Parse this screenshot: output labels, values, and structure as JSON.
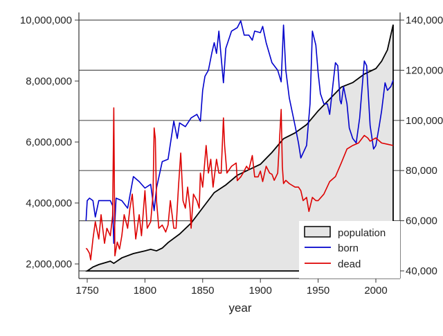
{
  "chart_data": {
    "type": "line",
    "xlabel": "year",
    "x_ticks": [
      "1750",
      "1800",
      "1850",
      "1900",
      "1950",
      "2000"
    ],
    "xlim": [
      1743,
      2021
    ],
    "y_left": {
      "ticks": [
        "2,000,000",
        "4,000,000",
        "6,000,000",
        "8,000,000",
        "10,000,000"
      ],
      "tick_values": [
        2000000,
        4000000,
        6000000,
        8000000,
        10000000
      ],
      "range": [
        1750000,
        10260000
      ]
    },
    "y_right": {
      "ticks": [
        "40,000",
        "60,000",
        "80,000",
        "100,000",
        "120,000",
        "140,000"
      ],
      "tick_values": [
        40000,
        60000,
        80000,
        100000,
        120000,
        140000
      ],
      "range": [
        37000,
        143000
      ]
    },
    "grid": "horizontal at right-axis ticks",
    "legend": {
      "position": "bottom-right",
      "entries": [
        "population",
        "born",
        "dead"
      ]
    },
    "colors": {
      "population_fill": "#e5e5e5",
      "population_line": "#000000",
      "born": "#0000cc",
      "dead": "#dd0000",
      "grid": "#555555"
    },
    "series": [
      {
        "name": "population",
        "axis": "left",
        "kind": "area",
        "x": [
          1750,
          1755,
          1760,
          1770,
          1773,
          1780,
          1790,
          1800,
          1805,
          1810,
          1815,
          1820,
          1830,
          1840,
          1850,
          1860,
          1870,
          1880,
          1890,
          1900,
          1910,
          1920,
          1930,
          1940,
          1950,
          1960,
          1970,
          1980,
          1990,
          2000,
          2005,
          2010,
          2015
        ],
        "y": [
          1770000,
          1900000,
          1980000,
          2090000,
          2020000,
          2200000,
          2340000,
          2430000,
          2480000,
          2430000,
          2520000,
          2700000,
          2980000,
          3340000,
          3840000,
          4340000,
          4590000,
          4910000,
          5090000,
          5270000,
          5660000,
          6110000,
          6300000,
          6570000,
          7020000,
          7410000,
          7800000,
          7950000,
          8230000,
          8410000,
          8650000,
          9020000,
          9850000
        ]
      },
      {
        "name": "born",
        "axis": "right",
        "kind": "line",
        "x": [
          1749,
          1750,
          1752,
          1755,
          1757,
          1760,
          1765,
          1770,
          1772,
          1773,
          1775,
          1780,
          1785,
          1790,
          1795,
          1800,
          1805,
          1808,
          1810,
          1815,
          1820,
          1825,
          1828,
          1830,
          1835,
          1840,
          1845,
          1848,
          1850,
          1852,
          1855,
          1858,
          1860,
          1862,
          1864,
          1868,
          1870,
          1875,
          1880,
          1883,
          1886,
          1890,
          1893,
          1895,
          1900,
          1902,
          1905,
          1910,
          1915,
          1918,
          1920,
          1922,
          1925,
          1930,
          1933,
          1935,
          1940,
          1943,
          1945,
          1948,
          1950,
          1952,
          1955,
          1958,
          1960,
          1963,
          1965,
          1967,
          1969,
          1970,
          1972,
          1975,
          1977,
          1980,
          1983,
          1986,
          1990,
          1992,
          1995,
          1998,
          2000,
          2003,
          2005,
          2008,
          2010,
          2013,
          2015
        ],
        "y": [
          60000,
          68000,
          69000,
          68000,
          61500,
          68000,
          68000,
          68000,
          66000,
          51000,
          69000,
          68000,
          65000,
          77600,
          75600,
          73000,
          74500,
          64000,
          73000,
          83600,
          84500,
          99700,
          92800,
          99000,
          97500,
          101000,
          102400,
          99700,
          112000,
          117600,
          120000,
          127000,
          131000,
          126700,
          135600,
          115000,
          128700,
          135600,
          137000,
          139700,
          134000,
          134000,
          132000,
          135600,
          135000,
          137500,
          131000,
          123000,
          120000,
          115400,
          138000,
          120000,
          109000,
          98000,
          91000,
          85000,
          90000,
          106600,
          135600,
          130000,
          119000,
          110700,
          106600,
          106600,
          102400,
          115000,
          123000,
          121800,
          108000,
          106600,
          113500,
          106600,
          97000,
          92800,
          91000,
          101000,
          123700,
          121800,
          98000,
          88600,
          90000,
          98000,
          103800,
          115000,
          112000,
          113500,
          116000
        ]
      },
      {
        "name": "dead",
        "axis": "right",
        "kind": "line",
        "x": [
          1749,
          1750,
          1752,
          1753,
          1755,
          1757,
          1760,
          1762,
          1765,
          1767,
          1770,
          1772,
          1773,
          1774,
          1776,
          1778,
          1780,
          1782,
          1785,
          1787,
          1789,
          1790,
          1792,
          1795,
          1797,
          1800,
          1802,
          1805,
          1807,
          1808,
          1809,
          1810,
          1812,
          1815,
          1818,
          1820,
          1822,
          1825,
          1827,
          1829,
          1831,
          1833,
          1835,
          1837,
          1839,
          1840,
          1842,
          1845,
          1847,
          1848,
          1850,
          1853,
          1855,
          1857,
          1859,
          1862,
          1864,
          1866,
          1868,
          1869,
          1871,
          1875,
          1879,
          1880,
          1883,
          1885,
          1888,
          1890,
          1893,
          1895,
          1898,
          1900,
          1902,
          1905,
          1908,
          1910,
          1912,
          1915,
          1918,
          1919,
          1920,
          1922,
          1925,
          1930,
          1933,
          1935,
          1937,
          1940,
          1942,
          1945,
          1948,
          1950,
          1955,
          1960,
          1965,
          1970,
          1975,
          1980,
          1985,
          1990,
          1993,
          1995,
          2000,
          2005,
          2010,
          2015
        ],
        "y": [
          49000,
          48600,
          47000,
          44400,
          52700,
          59600,
          52700,
          62400,
          51000,
          57000,
          54000,
          62000,
          105000,
          46000,
          51500,
          48700,
          54000,
          62400,
          57000,
          65000,
          70600,
          65000,
          52700,
          62400,
          54000,
          72000,
          57000,
          59600,
          70600,
          97000,
          92800,
          68000,
          57000,
          58300,
          55500,
          58300,
          68000,
          57000,
          57000,
          73400,
          87000,
          68000,
          65000,
          73400,
          65000,
          57000,
          70600,
          68000,
          65000,
          79000,
          73400,
          90000,
          79000,
          84500,
          73400,
          84500,
          79000,
          79000,
          101000,
          90000,
          79000,
          81700,
          83000,
          76000,
          77500,
          79000,
          81700,
          80300,
          86000,
          77500,
          77500,
          79800,
          75600,
          81700,
          79000,
          78500,
          76100,
          79000,
          104400,
          81700,
          74800,
          76100,
          74800,
          73400,
          73400,
          72000,
          68000,
          69300,
          63700,
          69300,
          68000,
          68000,
          70600,
          75600,
          77600,
          83000,
          88600,
          90000,
          91000,
          94000,
          93000,
          91700,
          93000,
          91000,
          90500,
          90000
        ]
      }
    ]
  }
}
